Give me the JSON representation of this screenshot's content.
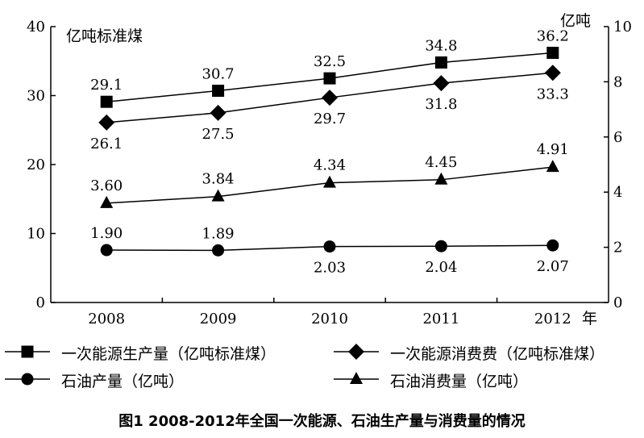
{
  "caption": "图1 2008-2012年全国一次能源、石油生产量与消费量的情况",
  "chart_data": {
    "type": "line",
    "categories": [
      "2008",
      "2009",
      "2010",
      "2011",
      "2012"
    ],
    "xlabel": "年",
    "ylabel_left": "亿吨标准煤",
    "ylabel_right": "亿吨",
    "ylim_left": [
      0,
      40
    ],
    "ylim_right": [
      0,
      10
    ],
    "yticks_left": [
      "0",
      "10",
      "20",
      "30",
      "40"
    ],
    "yticks_right": [
      "0",
      "2",
      "4",
      "6",
      "8",
      "10"
    ],
    "grid": false,
    "legend_position": "bottom",
    "series": [
      {
        "name": "一次能源生产量（亿吨标准煤）",
        "axis": "left",
        "marker": "square",
        "values": [
          29.1,
          30.7,
          32.5,
          34.8,
          36.2
        ],
        "labels": [
          "29.1",
          "30.7",
          "32.5",
          "34.8",
          "36.2"
        ]
      },
      {
        "name": "一次能源消费费（亿吨标准煤）",
        "axis": "left",
        "marker": "diamond",
        "values": [
          26.1,
          27.5,
          29.7,
          31.8,
          33.3
        ],
        "labels": [
          "26.1",
          "27.5",
          "29.7",
          "31.8",
          "33.3"
        ]
      },
      {
        "name": "石油产量（亿吨）",
        "axis": "right",
        "marker": "circle",
        "values": [
          1.9,
          1.89,
          2.03,
          2.04,
          2.07
        ],
        "labels": [
          "1.90",
          "1.89",
          "2.03",
          "2.04",
          "2.07"
        ]
      },
      {
        "name": "石油消费量（亿吨）",
        "axis": "right",
        "marker": "triangle",
        "values": [
          3.6,
          3.84,
          4.34,
          4.45,
          4.91
        ],
        "labels": [
          "3.60",
          "3.84",
          "4.34",
          "4.45",
          "4.91"
        ]
      }
    ]
  }
}
